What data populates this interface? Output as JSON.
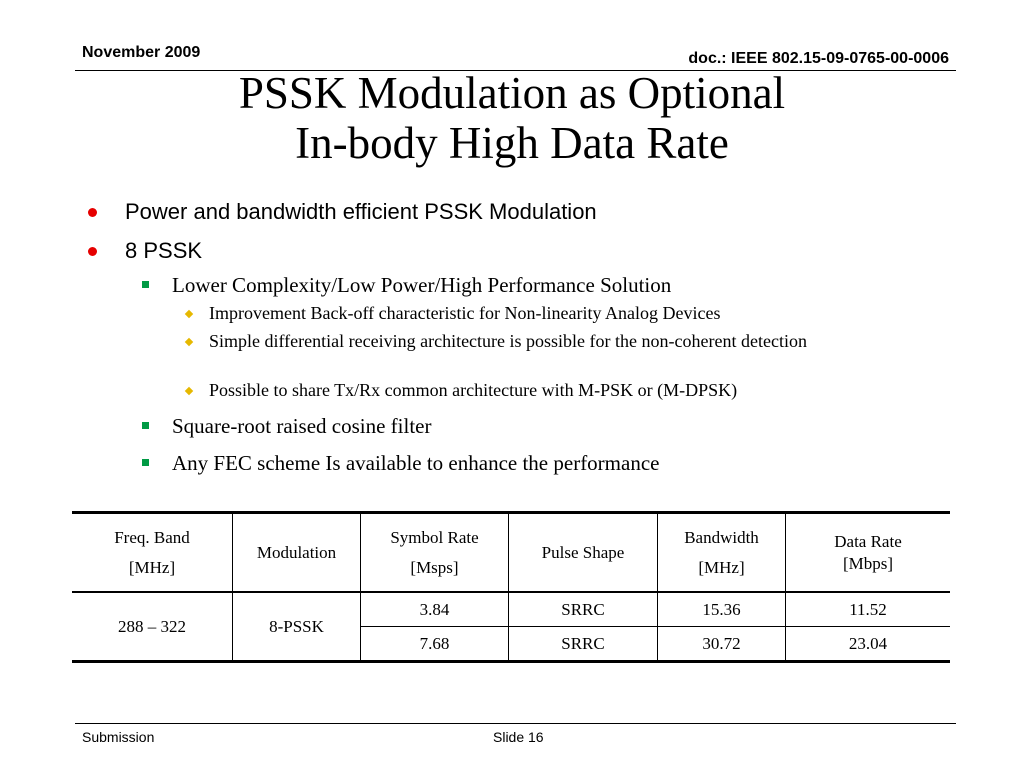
{
  "header": {
    "date": "November 2009",
    "doc_id": "doc.: IEEE 802.15-09-0765-00-0006"
  },
  "title": {
    "line1": "PSSK Modulation as Optional",
    "line2": "In-body High Data Rate"
  },
  "bullets": {
    "l1_a": "Power and bandwidth efficient PSSK Modulation",
    "l1_b": "8 PSSK",
    "l2_a": "Lower Complexity/Low Power/High Performance Solution",
    "l3_a": "Improvement Back-off characteristic for Non-linearity Analog Devices",
    "l3_b": "Simple differential receiving architecture is possible for the non-coherent detection",
    "l3_c": "Possible to share Tx/Rx common architecture with M-PSK or (M-DPSK)",
    "l2_b": "Square-root raised cosine filter",
    "l2_c": "Any FEC scheme Is available to enhance the performance"
  },
  "table": {
    "headers": [
      {
        "line1": "Freq. Band",
        "line2": "[MHz]"
      },
      {
        "line1": "Modulation",
        "line2": ""
      },
      {
        "line1": "Symbol Rate",
        "line2": "[Msps]"
      },
      {
        "line1": "Pulse Shape",
        "line2": ""
      },
      {
        "line1": "Bandwidth",
        "line2": "[MHz]"
      },
      {
        "line1": "Data Rate",
        "line2": "[Mbps]"
      }
    ],
    "freq_band": "288 – 322",
    "modulation": "8-PSSK",
    "rows": [
      {
        "symbol_rate": "3.84",
        "pulse_shape": "SRRC",
        "bandwidth": "15.36",
        "data_rate": "11.52"
      },
      {
        "symbol_rate": "7.68",
        "pulse_shape": "SRRC",
        "bandwidth": "30.72",
        "data_rate": "23.04"
      }
    ]
  },
  "footer": {
    "left": "Submission",
    "slide": "Slide 16"
  },
  "colors": {
    "bullet_l1": "#e60000",
    "bullet_l2": "#009a44",
    "bullet_l3": "#e6b800"
  }
}
